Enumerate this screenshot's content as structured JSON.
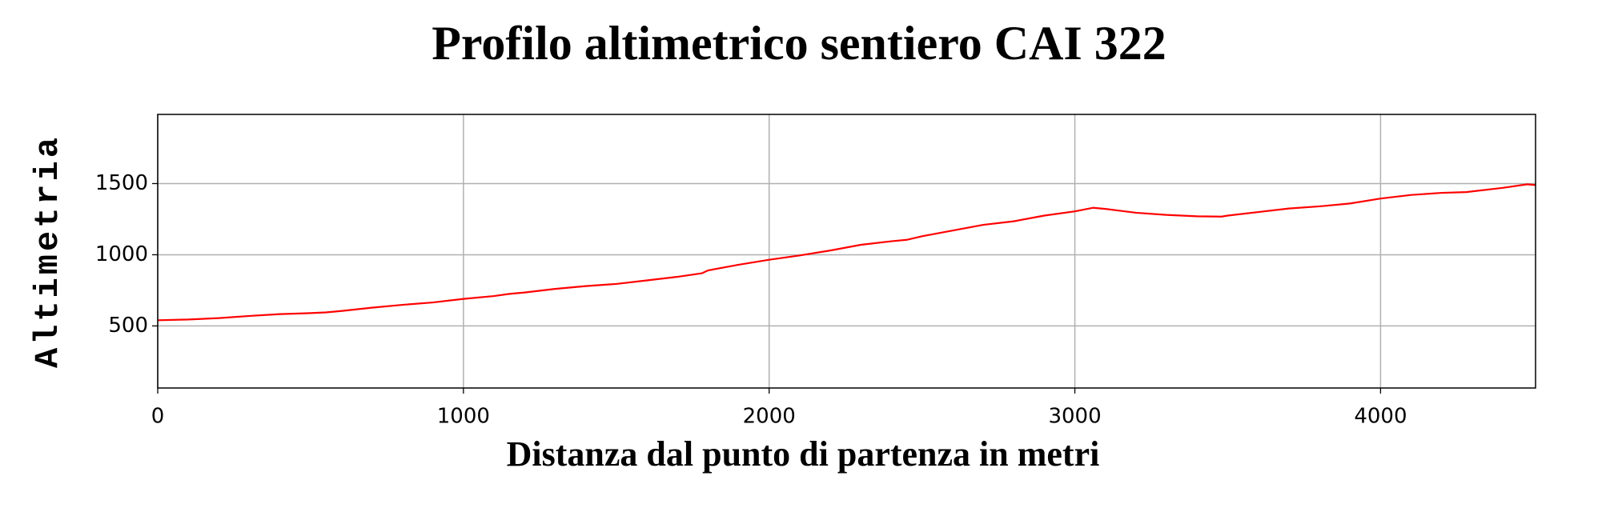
{
  "chart_data": {
    "type": "line",
    "title": "Profilo altimetrico sentiero CAI 322",
    "xlabel": "Distanza dal punto di partenza in metri",
    "ylabel": "Altimetria",
    "x": [
      0,
      100,
      200,
      300,
      400,
      500,
      550,
      600,
      700,
      800,
      900,
      1000,
      1100,
      1150,
      1200,
      1300,
      1400,
      1500,
      1600,
      1700,
      1780,
      1800,
      1900,
      2000,
      2100,
      2200,
      2300,
      2400,
      2450,
      2500,
      2600,
      2700,
      2800,
      2900,
      3000,
      3060,
      3100,
      3200,
      3300,
      3400,
      3480,
      3500,
      3600,
      3700,
      3800,
      3900,
      4000,
      4100,
      4200,
      4280,
      4400,
      4480,
      4507
    ],
    "series": [
      {
        "name": "Altimetria",
        "color": "#ff0000",
        "values": [
          540,
          545,
          555,
          570,
          583,
          590,
          595,
          605,
          628,
          648,
          665,
          690,
          710,
          725,
          735,
          760,
          780,
          795,
          820,
          845,
          870,
          890,
          930,
          965,
          995,
          1030,
          1070,
          1095,
          1105,
          1130,
          1170,
          1210,
          1235,
          1275,
          1305,
          1330,
          1322,
          1295,
          1280,
          1270,
          1268,
          1275,
          1300,
          1325,
          1340,
          1360,
          1395,
          1420,
          1435,
          1440,
          1470,
          1495,
          1490
        ]
      }
    ],
    "xlim": [
      0,
      4507
    ],
    "ylim": [
      64,
      1986
    ],
    "xticks": [
      0,
      1000,
      2000,
      3000,
      4000
    ],
    "yticks": [
      500,
      1000,
      1500
    ],
    "grid": true
  }
}
